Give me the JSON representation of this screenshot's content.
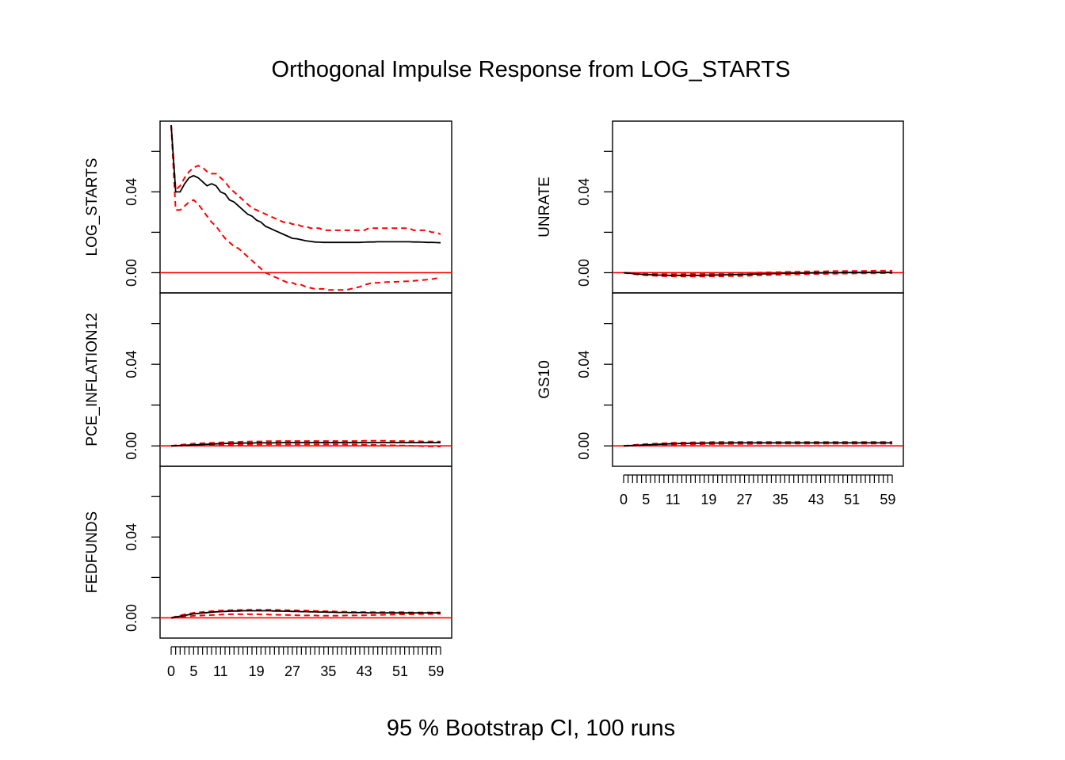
{
  "chart_data": {
    "type": "line",
    "title": "Orthogonal Impulse Response from LOG_STARTS",
    "xlabel": "95 % Bootstrap CI,  100 runs",
    "x_ticks": [
      0,
      1,
      2,
      3,
      4,
      5,
      6,
      7,
      8,
      9,
      10,
      11,
      12,
      13,
      14,
      15,
      16,
      17,
      18,
      19,
      20,
      21,
      22,
      23,
      24,
      25,
      26,
      27,
      28,
      29,
      30,
      31,
      32,
      33,
      34,
      35,
      36,
      37,
      38,
      39,
      40,
      41,
      42,
      43,
      44,
      45,
      46,
      47,
      48,
      49,
      50,
      51,
      52,
      53,
      54,
      55,
      56,
      57,
      58,
      59,
      60
    ],
    "x_tick_labels": [
      "0",
      "5",
      "11",
      "19",
      "27",
      "35",
      "43",
      "51",
      "59"
    ],
    "x_tick_label_values": [
      0,
      5,
      11,
      19,
      27,
      35,
      43,
      51,
      59
    ],
    "xlim": [
      0,
      60
    ],
    "ylim": [
      -0.01,
      0.075
    ],
    "y_ticks": [
      -0.02,
      0.0,
      0.02,
      0.04,
      0.06,
      0.08
    ],
    "y_tick_labels": [
      "0.00",
      "0.04"
    ],
    "y_tick_label_values": [
      0.0,
      0.04
    ],
    "zero_line_color": "#ff0000",
    "response_color": "#000000",
    "ci_color": "#ff0000",
    "x": [
      0,
      1,
      2,
      3,
      4,
      5,
      6,
      7,
      8,
      9,
      10,
      11,
      12,
      13,
      14,
      15,
      16,
      17,
      18,
      19,
      20,
      21,
      22,
      23,
      24,
      25,
      26,
      27,
      28,
      29,
      30,
      31,
      32,
      33,
      34,
      35,
      36,
      37,
      38,
      39,
      40,
      41,
      42,
      43,
      44,
      45,
      46,
      47,
      48,
      49,
      50,
      51,
      52,
      53,
      54,
      55,
      56,
      57,
      58,
      59,
      60
    ],
    "series": [
      {
        "panel": "LOG_STARTS",
        "response": [
          0.073,
          0.04,
          0.04,
          0.044,
          0.047,
          0.048,
          0.047,
          0.045,
          0.043,
          0.044,
          0.043,
          0.04,
          0.039,
          0.036,
          0.035,
          0.033,
          0.031,
          0.029,
          0.028,
          0.026,
          0.025,
          0.023,
          0.022,
          0.021,
          0.02,
          0.019,
          0.018,
          0.017,
          0.0168,
          0.0163,
          0.0158,
          0.0155,
          0.0152,
          0.0151,
          0.015,
          0.015,
          0.015,
          0.015,
          0.015,
          0.015,
          0.015,
          0.015,
          0.015,
          0.0151,
          0.0152,
          0.0152,
          0.0153,
          0.0153,
          0.0153,
          0.0153,
          0.0153,
          0.0153,
          0.0153,
          0.0153,
          0.0152,
          0.0152,
          0.0151,
          0.015,
          0.015,
          0.0149,
          0.0148
        ],
        "upper": [
          0.073,
          0.041,
          0.043,
          0.047,
          0.05,
          0.052,
          0.053,
          0.052,
          0.05,
          0.049,
          0.049,
          0.047,
          0.045,
          0.042,
          0.04,
          0.038,
          0.036,
          0.034,
          0.032,
          0.031,
          0.03,
          0.029,
          0.028,
          0.027,
          0.026,
          0.025,
          0.025,
          0.024,
          0.024,
          0.023,
          0.023,
          0.022,
          0.022,
          0.022,
          0.021,
          0.021,
          0.021,
          0.021,
          0.021,
          0.021,
          0.021,
          0.021,
          0.021,
          0.021,
          0.022,
          0.022,
          0.022,
          0.022,
          0.022,
          0.022,
          0.022,
          0.022,
          0.022,
          0.022,
          0.021,
          0.021,
          0.021,
          0.021,
          0.02,
          0.02,
          0.019
        ],
        "lower": [
          0.073,
          0.031,
          0.031,
          0.033,
          0.035,
          0.036,
          0.034,
          0.031,
          0.028,
          0.025,
          0.023,
          0.02,
          0.017,
          0.015,
          0.013,
          0.012,
          0.01,
          0.008,
          0.006,
          0.004,
          0.002,
          0.0,
          -0.001,
          -0.002,
          -0.003,
          -0.004,
          -0.005,
          -0.005,
          -0.006,
          -0.006,
          -0.007,
          -0.0075,
          -0.008,
          -0.008,
          -0.008,
          -0.0085,
          -0.0085,
          -0.0085,
          -0.0085,
          -0.0085,
          -0.008,
          -0.0075,
          -0.007,
          -0.006,
          -0.0055,
          -0.005,
          -0.005,
          -0.0048,
          -0.0046,
          -0.0045,
          -0.0045,
          -0.0044,
          -0.0043,
          -0.0042,
          -0.004,
          -0.0038,
          -0.0036,
          -0.0034,
          -0.0032,
          -0.0028,
          -0.0025
        ]
      },
      {
        "panel": "PCE_INFLATION12",
        "response": [
          0.0,
          0.0001,
          0.0002,
          0.0003,
          0.0004,
          0.0005,
          0.0006,
          0.0007,
          0.0008,
          0.0009,
          0.001,
          0.0011,
          0.0012,
          0.0012,
          0.0013,
          0.0013,
          0.0014,
          0.0014,
          0.0014,
          0.0015,
          0.0015,
          0.0015,
          0.0015,
          0.0015,
          0.0016,
          0.0016,
          0.0016,
          0.0016,
          0.0016,
          0.0016,
          0.0016,
          0.0016,
          0.0016,
          0.0016,
          0.0016,
          0.0016,
          0.0016,
          0.0016,
          0.0016,
          0.0016,
          0.0016,
          0.0016,
          0.0016,
          0.0016,
          0.0016,
          0.0016,
          0.0016,
          0.0016,
          0.0016,
          0.0016,
          0.0016,
          0.0016,
          0.0016,
          0.0016,
          0.0016,
          0.0016,
          0.0016,
          0.0016,
          0.0016,
          0.0016,
          0.0016
        ],
        "upper": [
          0.0,
          0.0003,
          0.0005,
          0.0007,
          0.0009,
          0.0011,
          0.0012,
          0.0013,
          0.0014,
          0.0015,
          0.0016,
          0.0017,
          0.0018,
          0.0019,
          0.002,
          0.002,
          0.0021,
          0.0021,
          0.0022,
          0.0022,
          0.0022,
          0.0023,
          0.0023,
          0.0023,
          0.0024,
          0.0024,
          0.0024,
          0.0024,
          0.0024,
          0.0024,
          0.0024,
          0.0024,
          0.0024,
          0.0024,
          0.0024,
          0.0024,
          0.0024,
          0.0024,
          0.0024,
          0.0024,
          0.0024,
          0.0024,
          0.0024,
          0.0025,
          0.0025,
          0.0025,
          0.0025,
          0.0025,
          0.0025,
          0.0024,
          0.0024,
          0.0024,
          0.0024,
          0.0023,
          0.0023,
          0.0023,
          0.0022,
          0.0022,
          0.0022,
          0.0021,
          0.0021
        ],
        "lower": [
          0.0,
          0.0,
          0.0,
          0.0001,
          0.0001,
          0.0002,
          0.0002,
          0.0003,
          0.0003,
          0.0004,
          0.0004,
          0.0005,
          0.0005,
          0.0006,
          0.0006,
          0.0006,
          0.0007,
          0.0007,
          0.0007,
          0.0007,
          0.0007,
          0.0008,
          0.0008,
          0.0008,
          0.0008,
          0.0008,
          0.0008,
          0.0008,
          0.0008,
          0.0008,
          0.0008,
          0.0008,
          0.0008,
          0.0008,
          0.0008,
          0.0008,
          0.0008,
          0.0008,
          0.0008,
          0.0007,
          0.0007,
          0.0007,
          0.0007,
          0.0006,
          0.0006,
          0.0005,
          0.0005,
          0.0004,
          0.0004,
          0.0003,
          0.0003,
          0.0002,
          0.0002,
          0.0001,
          0.0,
          0.0,
          -0.0001,
          -0.0002,
          -0.0002,
          -0.0003,
          -0.0003
        ]
      },
      {
        "panel": "FEDFUNDS",
        "response": [
          0.0,
          0.0004,
          0.0008,
          0.0012,
          0.0016,
          0.002,
          0.0022,
          0.0024,
          0.0026,
          0.0028,
          0.003,
          0.0031,
          0.0032,
          0.0033,
          0.0034,
          0.0034,
          0.0035,
          0.0035,
          0.0035,
          0.0035,
          0.0035,
          0.0035,
          0.0035,
          0.0034,
          0.0034,
          0.0033,
          0.0033,
          0.0032,
          0.0032,
          0.0031,
          0.0031,
          0.003,
          0.003,
          0.0029,
          0.0029,
          0.0028,
          0.0028,
          0.0027,
          0.0027,
          0.0027,
          0.0026,
          0.0026,
          0.0026,
          0.0026,
          0.0025,
          0.0025,
          0.0025,
          0.0025,
          0.0025,
          0.0025,
          0.0025,
          0.0025,
          0.0025,
          0.0025,
          0.0025,
          0.0025,
          0.0025,
          0.0025,
          0.0025,
          0.0025,
          0.0025
        ],
        "upper": [
          0.0,
          0.0006,
          0.0012,
          0.0017,
          0.0021,
          0.0025,
          0.0027,
          0.0029,
          0.0031,
          0.0033,
          0.0035,
          0.0036,
          0.0037,
          0.0038,
          0.0039,
          0.0039,
          0.004,
          0.004,
          0.004,
          0.004,
          0.004,
          0.004,
          0.004,
          0.0039,
          0.0039,
          0.0038,
          0.0038,
          0.0037,
          0.0037,
          0.0036,
          0.0036,
          0.0035,
          0.0034,
          0.0034,
          0.0033,
          0.0032,
          0.0032,
          0.0031,
          0.0031,
          0.003,
          0.003,
          0.0029,
          0.0029,
          0.0029,
          0.0028,
          0.0028,
          0.0028,
          0.0028,
          0.0028,
          0.0028,
          0.0028,
          0.0028,
          0.0028,
          0.0027,
          0.0027,
          0.0027,
          0.0027,
          0.0027,
          0.0027,
          0.0027,
          0.0027
        ],
        "lower": [
          0.0,
          0.0002,
          0.0004,
          0.0006,
          0.0008,
          0.001,
          0.0011,
          0.0012,
          0.0013,
          0.0014,
          0.0015,
          0.0016,
          0.0017,
          0.0018,
          0.0018,
          0.0018,
          0.0018,
          0.0018,
          0.0018,
          0.0018,
          0.0017,
          0.0017,
          0.0016,
          0.0016,
          0.0015,
          0.0015,
          0.0014,
          0.0014,
          0.0013,
          0.0013,
          0.0012,
          0.0012,
          0.0012,
          0.0011,
          0.0011,
          0.0011,
          0.0011,
          0.0011,
          0.0011,
          0.0012,
          0.0012,
          0.0012,
          0.0013,
          0.0013,
          0.0014,
          0.0014,
          0.0015,
          0.0015,
          0.0016,
          0.0016,
          0.0017,
          0.0017,
          0.0018,
          0.0018,
          0.0018,
          0.0019,
          0.0019,
          0.0019,
          0.0019,
          0.002,
          0.002
        ]
      },
      {
        "panel": "UNRATE",
        "response": [
          0.0,
          -0.0002,
          -0.0004,
          -0.0006,
          -0.0008,
          -0.0009,
          -0.001,
          -0.0011,
          -0.0012,
          -0.0012,
          -0.0013,
          -0.0013,
          -0.0013,
          -0.0013,
          -0.0013,
          -0.0013,
          -0.0013,
          -0.0013,
          -0.0012,
          -0.0012,
          -0.0012,
          -0.0011,
          -0.0011,
          -0.001,
          -0.001,
          -0.0009,
          -0.0009,
          -0.0008,
          -0.0008,
          -0.0007,
          -0.0006,
          -0.0006,
          -0.0005,
          -0.0005,
          -0.0004,
          -0.0004,
          -0.0003,
          -0.0003,
          -0.0003,
          -0.0002,
          -0.0002,
          -0.0002,
          -0.0001,
          -0.0001,
          -0.0001,
          0.0,
          0.0,
          0.0,
          0.0,
          0.0001,
          0.0001,
          0.0001,
          0.0001,
          0.0001,
          0.0001,
          0.0002,
          0.0002,
          0.0002,
          0.0002,
          0.0002,
          0.0002
        ],
        "upper": [
          0.0,
          -0.0001,
          -0.0002,
          -0.0003,
          -0.0004,
          -0.0005,
          -0.0006,
          -0.0006,
          -0.0006,
          -0.0007,
          -0.0007,
          -0.0007,
          -0.0007,
          -0.0007,
          -0.0006,
          -0.0006,
          -0.0006,
          -0.0005,
          -0.0005,
          -0.0005,
          -0.0004,
          -0.0004,
          -0.0003,
          -0.0003,
          -0.0002,
          -0.0002,
          -0.0001,
          -0.0001,
          0.0,
          0.0,
          0.0001,
          0.0001,
          0.0002,
          0.0002,
          0.0003,
          0.0003,
          0.0004,
          0.0004,
          0.0005,
          0.0005,
          0.0006,
          0.0006,
          0.0006,
          0.0007,
          0.0007,
          0.0007,
          0.0008,
          0.0008,
          0.0008,
          0.0008,
          0.0009,
          0.0009,
          0.0009,
          0.0009,
          0.0009,
          0.0009,
          0.001,
          0.001,
          0.001,
          0.001,
          0.001
        ],
        "lower": [
          0.0,
          -0.0003,
          -0.0006,
          -0.0009,
          -0.0011,
          -0.0013,
          -0.0014,
          -0.0015,
          -0.0016,
          -0.0017,
          -0.0018,
          -0.0018,
          -0.0019,
          -0.0019,
          -0.0019,
          -0.0019,
          -0.0019,
          -0.0019,
          -0.0019,
          -0.0019,
          -0.0018,
          -0.0018,
          -0.0018,
          -0.0017,
          -0.0017,
          -0.0016,
          -0.0016,
          -0.0015,
          -0.0015,
          -0.0014,
          -0.0013,
          -0.0013,
          -0.0012,
          -0.0011,
          -0.0011,
          -0.001,
          -0.001,
          -0.0009,
          -0.0009,
          -0.0008,
          -0.0008,
          -0.0007,
          -0.0007,
          -0.0006,
          -0.0006,
          -0.0006,
          -0.0005,
          -0.0005,
          -0.0005,
          -0.0004,
          -0.0004,
          -0.0004,
          -0.0003,
          -0.0003,
          -0.0003,
          -0.0003,
          -0.0003,
          -0.0002,
          -0.0002,
          -0.0002,
          -0.0002
        ]
      },
      {
        "panel": "GS10",
        "response": [
          0.0,
          0.0001,
          0.0002,
          0.0003,
          0.0004,
          0.0005,
          0.0006,
          0.0007,
          0.0008,
          0.0009,
          0.001,
          0.0011,
          0.0011,
          0.0012,
          0.0012,
          0.0013,
          0.0013,
          0.0013,
          0.0014,
          0.0014,
          0.0014,
          0.0014,
          0.0014,
          0.0014,
          0.0015,
          0.0015,
          0.0015,
          0.0015,
          0.0015,
          0.0015,
          0.0015,
          0.0015,
          0.0015,
          0.0015,
          0.0015,
          0.0015,
          0.0015,
          0.0015,
          0.0015,
          0.0015,
          0.0015,
          0.0015,
          0.0015,
          0.0015,
          0.0015,
          0.0015,
          0.0015,
          0.0015,
          0.0015,
          0.0015,
          0.0015,
          0.0015,
          0.0015,
          0.0015,
          0.0015,
          0.0015,
          0.0015,
          0.0015,
          0.0015,
          0.0015,
          0.0015
        ],
        "upper": [
          0.0,
          0.0002,
          0.0004,
          0.0006,
          0.0008,
          0.0009,
          0.001,
          0.0011,
          0.0012,
          0.0013,
          0.0014,
          0.0015,
          0.0016,
          0.0016,
          0.0017,
          0.0017,
          0.0018,
          0.0018,
          0.0018,
          0.0018,
          0.0019,
          0.0019,
          0.0019,
          0.0019,
          0.0019,
          0.0019,
          0.0019,
          0.0019,
          0.0019,
          0.0019,
          0.0019,
          0.0019,
          0.0019,
          0.0019,
          0.0019,
          0.0019,
          0.0019,
          0.0019,
          0.0019,
          0.0019,
          0.0019,
          0.0019,
          0.0019,
          0.0019,
          0.0019,
          0.0019,
          0.0019,
          0.0019,
          0.0019,
          0.0019,
          0.0019,
          0.0019,
          0.0019,
          0.0019,
          0.0019,
          0.0019,
          0.0019,
          0.0019,
          0.0019,
          0.0019,
          0.0019
        ],
        "lower": [
          0.0,
          0.0,
          0.0001,
          0.0001,
          0.0002,
          0.0002,
          0.0003,
          0.0003,
          0.0004,
          0.0004,
          0.0005,
          0.0006,
          0.0006,
          0.0007,
          0.0007,
          0.0008,
          0.0008,
          0.0008,
          0.0009,
          0.0009,
          0.0009,
          0.0009,
          0.001,
          0.001,
          0.001,
          0.001,
          0.001,
          0.001,
          0.001,
          0.001,
          0.0011,
          0.0011,
          0.0011,
          0.0011,
          0.0011,
          0.0011,
          0.0011,
          0.0011,
          0.0011,
          0.0011,
          0.0011,
          0.0011,
          0.0011,
          0.0011,
          0.0011,
          0.0011,
          0.0011,
          0.0011,
          0.0011,
          0.0011,
          0.0011,
          0.0011,
          0.0011,
          0.0011,
          0.0011,
          0.0011,
          0.0011,
          0.0011,
          0.0011,
          0.0011,
          0.0011
        ]
      }
    ]
  }
}
